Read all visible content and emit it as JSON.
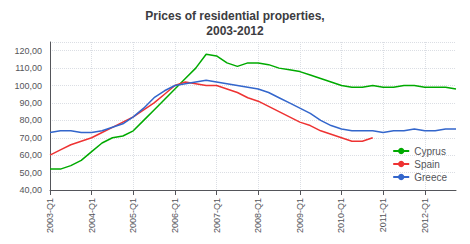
{
  "chart_data": {
    "type": "line",
    "title": "Prices of residential properties,\n2003-2012",
    "categories": [
      "2003-Q1",
      null,
      null,
      null,
      "2004-Q1",
      null,
      null,
      null,
      "2005-Q1",
      null,
      null,
      null,
      "2006-Q1",
      null,
      null,
      null,
      "2007-Q1",
      null,
      null,
      null,
      "2008-Q1",
      null,
      null,
      null,
      "2009-Q1",
      null,
      null,
      null,
      "2010-Q1",
      null,
      null,
      null,
      "2011-Q1",
      null,
      null,
      null,
      "2012-Q1",
      null,
      null,
      null
    ],
    "series": [
      {
        "name": "Cyprus",
        "color": "#00aa00",
        "values": [
          52,
          52,
          54,
          57,
          62,
          67,
          70,
          71,
          74,
          80,
          86,
          92,
          98,
          104,
          110,
          118,
          117,
          113,
          111,
          113,
          113,
          112,
          110,
          109,
          108,
          106,
          104,
          102,
          100,
          99,
          99,
          100,
          99,
          99,
          100,
          100,
          99,
          99,
          99,
          98
        ]
      },
      {
        "name": "Spain",
        "color": "#ee3333",
        "values": [
          60,
          63,
          66,
          68,
          70,
          73,
          76,
          79,
          82,
          86,
          90,
          95,
          100,
          102,
          101,
          100,
          100,
          98,
          96,
          93,
          91,
          88,
          85,
          82,
          79,
          77,
          74,
          72,
          70,
          68,
          68,
          70,
          null,
          null,
          null,
          null,
          null,
          null,
          null,
          null
        ]
      },
      {
        "name": "Greece",
        "color": "#3366cc",
        "values": [
          73,
          74,
          74,
          73,
          73,
          74,
          76,
          78,
          82,
          87,
          93,
          97,
          100,
          101,
          102,
          103,
          102,
          101,
          100,
          99,
          98,
          96,
          93,
          90,
          87,
          84,
          80,
          77,
          75,
          74,
          74,
          74,
          73,
          74,
          74,
          75,
          74,
          74,
          75,
          75
        ]
      }
    ],
    "ylim": [
      40,
      125
    ],
    "yticks": [
      {
        "value": 40,
        "label": "40,00"
      },
      {
        "value": 50,
        "label": "50,00"
      },
      {
        "value": 60,
        "label": "60,00"
      },
      {
        "value": 70,
        "label": "70,00"
      },
      {
        "value": 80,
        "label": "80,00"
      },
      {
        "value": 90,
        "label": "90,00"
      },
      {
        "value": 100,
        "label": "100,00"
      },
      {
        "value": 110,
        "label": "110,00"
      },
      {
        "value": 120,
        "label": "120,00"
      }
    ],
    "grid": true,
    "legend": "lower right"
  }
}
